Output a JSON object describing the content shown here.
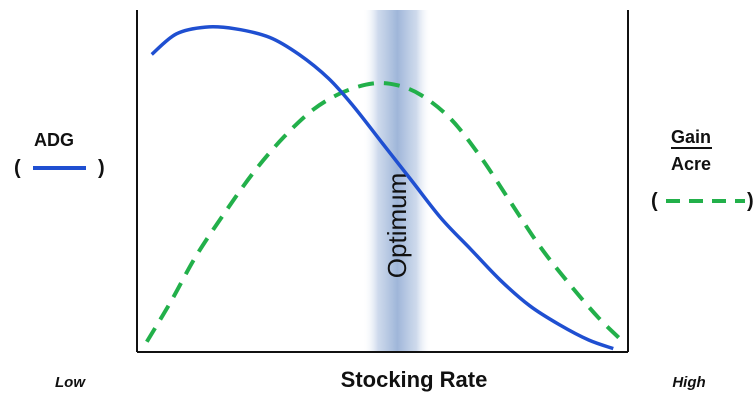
{
  "chart_data": {
    "type": "line",
    "title": "",
    "xlabel": "Stocking Rate",
    "x_low_label": "Low",
    "x_high_label": "High",
    "ylabel_left": "ADG",
    "ylabel_right_numerator": "Gain",
    "ylabel_right_denominator": "Acre",
    "band_label": "Optimum",
    "band_range": [
      0.46,
      0.6
    ],
    "xlim": [
      0,
      1
    ],
    "ylim": [
      0,
      1
    ],
    "grid": false,
    "legend": "none",
    "series": [
      {
        "name": "ADG",
        "color": "#1f4fd1",
        "style": "solid",
        "x": [
          0.03,
          0.08,
          0.14,
          0.2,
          0.27,
          0.33,
          0.39,
          0.44,
          0.5,
          0.56,
          0.62,
          0.68,
          0.74,
          0.8,
          0.86,
          0.92,
          0.97
        ],
        "y": [
          0.87,
          0.93,
          0.95,
          0.945,
          0.92,
          0.87,
          0.8,
          0.72,
          0.61,
          0.5,
          0.39,
          0.3,
          0.21,
          0.135,
          0.08,
          0.035,
          0.01
        ]
      },
      {
        "name": "Gain/Acre",
        "color": "#22b04a",
        "style": "dashed",
        "x": [
          0.02,
          0.07,
          0.12,
          0.18,
          0.24,
          0.3,
          0.36,
          0.42,
          0.48,
          0.53,
          0.58,
          0.64,
          0.7,
          0.76,
          0.82,
          0.88,
          0.94,
          0.99
        ],
        "y": [
          0.03,
          0.15,
          0.28,
          0.41,
          0.53,
          0.63,
          0.71,
          0.76,
          0.785,
          0.78,
          0.75,
          0.68,
          0.57,
          0.44,
          0.31,
          0.2,
          0.1,
          0.03
        ]
      }
    ]
  }
}
